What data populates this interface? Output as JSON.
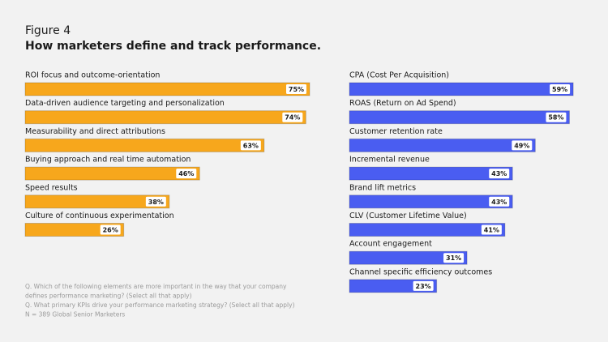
{
  "figure": "Figure 4",
  "title": "How marketers define and track performance.",
  "notes": [
    "Q. Which of the following elements are more important in the way that your company",
    "defines performance marketing? (Select all that apply)",
    "Q. What primary KPIs drive your performance marketing strategy? (Select all that apply)",
    "N = 389 Global Senior Marketers"
  ],
  "chart_data": [
    {
      "type": "bar",
      "orientation": "horizontal",
      "color": "#f7a71c",
      "categories": [
        "ROI focus and outcome-orientation",
        "Data-driven audience targeting and personalization",
        "Measurability and direct attributions",
        "Buying approach and real time automation",
        "Speed results",
        "Culture of continuous experimentation"
      ],
      "values": [
        75,
        74,
        63,
        46,
        38,
        26
      ],
      "value_labels": [
        "75%",
        "74%",
        "63%",
        "46%",
        "38%",
        "26%"
      ]
    },
    {
      "type": "bar",
      "orientation": "horizontal",
      "color": "#4a5df1",
      "categories": [
        "CPA (Cost Per Acquisition)",
        "ROAS (Return on Ad Spend)",
        "Customer retention rate",
        "Incremental revenue",
        "Brand lift metrics",
        "CLV (Customer Lifetime Value)",
        "Account engagement",
        "Channel specific efficiency outcomes"
      ],
      "values": [
        59,
        58,
        49,
        43,
        43,
        41,
        31,
        23
      ],
      "value_labels": [
        "59%",
        "58%",
        "49%",
        "43%",
        "43%",
        "41%",
        "31%",
        "23%"
      ]
    }
  ]
}
